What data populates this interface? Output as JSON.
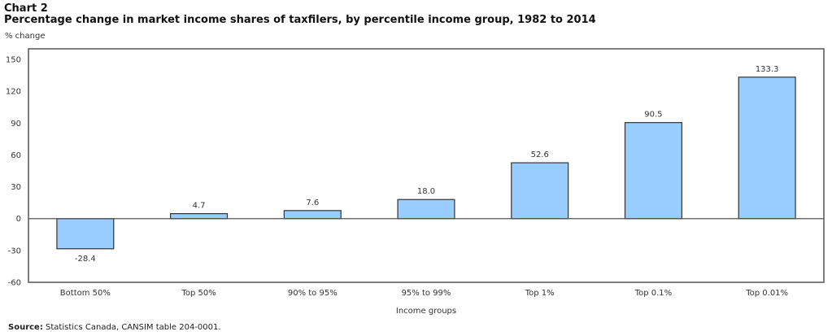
{
  "chart_data": {
    "type": "bar",
    "chart_number": "Chart 2",
    "title": "Percentage change in market income shares of taxfilers, by percentile income group, 1982 to 2014",
    "ylabel": "% change",
    "xlabel": "Income groups",
    "categories": [
      "Bottom 50%",
      "Top 50%",
      "90% to 95%",
      "95% to 99%",
      "Top 1%",
      "Top 0.1%",
      "Top 0.01%"
    ],
    "values": [
      -28.4,
      4.7,
      7.6,
      18.0,
      52.6,
      90.5,
      133.3
    ],
    "value_labels": [
      "-28.4",
      "4.7",
      "7.6",
      "18.0",
      "52.6",
      "90.5",
      "133.3"
    ],
    "yticks": [
      -60,
      -30,
      0,
      30,
      60,
      90,
      120,
      150
    ],
    "ylim": [
      -60,
      160
    ],
    "grid": false,
    "bar_color": "#99ccff",
    "bar_edge_color": "#333333"
  },
  "source": {
    "label": "Source:",
    "text": " Statistics Canada, CANSIM table 204-0001."
  }
}
